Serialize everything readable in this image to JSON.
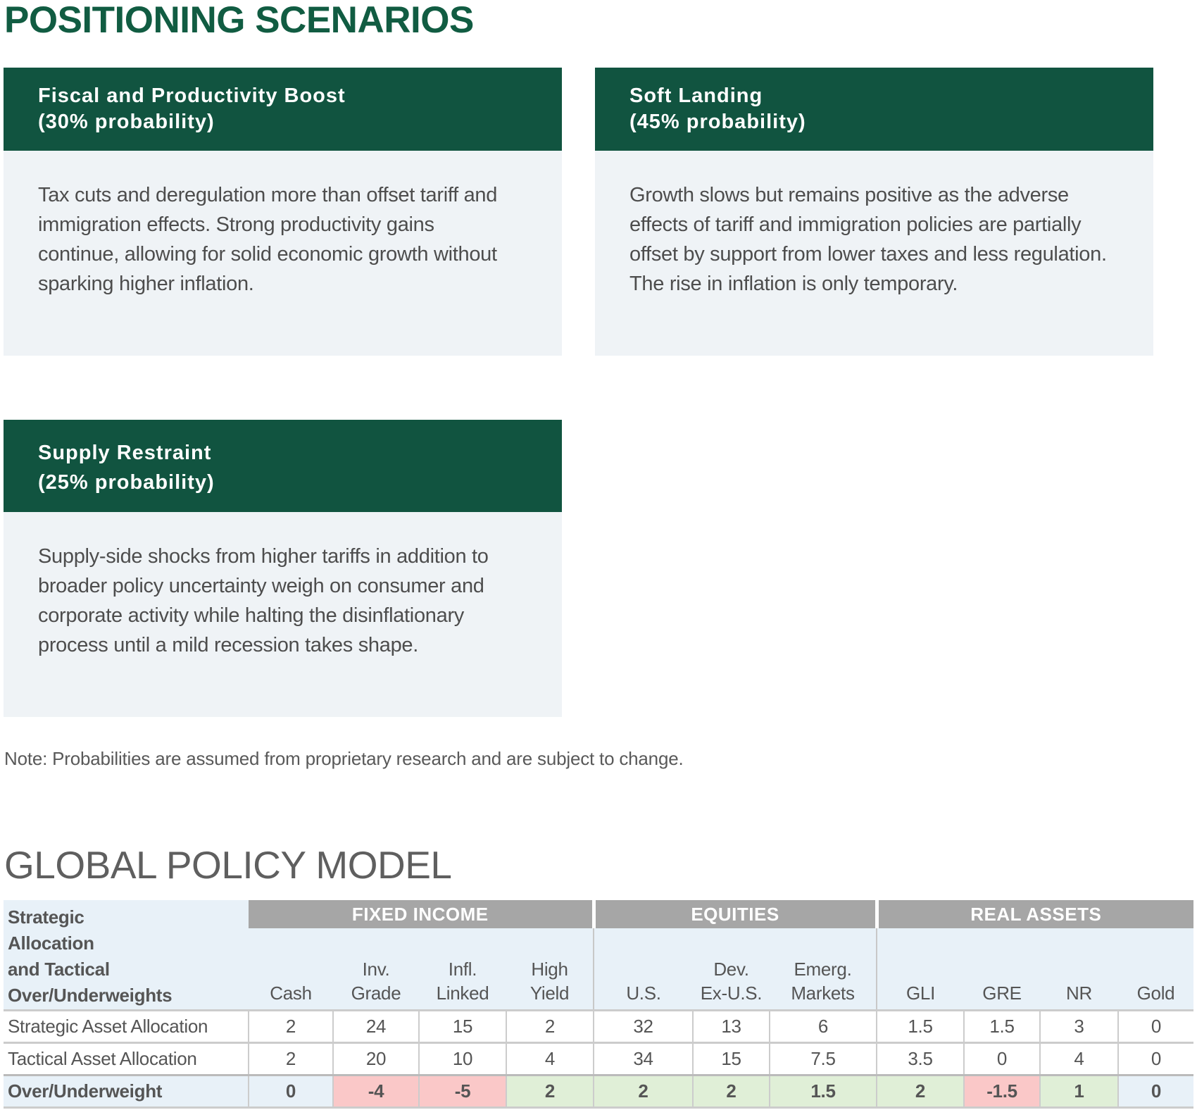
{
  "title": "POSITIONING SCENARIOS",
  "scenarios": [
    {
      "name": "Fiscal and Productivity Boost",
      "probability": "(30% probability)",
      "lines": [
        "Tax cuts and deregulation more than offset tariff and",
        "immigration effects. Strong productivity gains",
        "continue, allowing for solid economic growth without",
        "sparking higher inflation."
      ]
    },
    {
      "name": "Soft Landing",
      "probability": "(45% probability)",
      "lines": [
        "Growth slows but remains positive as the adverse",
        "effects of tariff and immigration policies are partially",
        "offset by support from lower taxes and less regulation.",
        "The rise in inflation is only temporary."
      ]
    },
    {
      "name": "Supply Restraint",
      "probability": "(25% probability)",
      "lines": [
        "Supply-side shocks from higher tariffs in addition to",
        "broader policy uncertainty weigh on consumer and",
        "corporate activity while halting the disinflationary",
        "process until a mild recession takes shape."
      ]
    }
  ],
  "note": "Note: Probabilities are assumed from proprietary research and are subject to change.",
  "model_title": "GLOBAL POLICY MODEL",
  "table": {
    "corner": [
      "Strategic",
      "Allocation",
      "and Tactical",
      "Over/Underweights"
    ],
    "groups": [
      "FIXED INCOME",
      "EQUITIES",
      "REAL ASSETS"
    ],
    "columns": [
      [
        "",
        "Cash"
      ],
      [
        "Inv.",
        "Grade"
      ],
      [
        "Infl.",
        "Linked"
      ],
      [
        "High",
        "Yield"
      ],
      [
        "",
        "U.S."
      ],
      [
        "Dev.",
        "Ex-U.S."
      ],
      [
        "Emerg.",
        "Markets"
      ],
      [
        "",
        "GLI"
      ],
      [
        "",
        "GRE"
      ],
      [
        "",
        "NR"
      ],
      [
        "",
        "Gold"
      ]
    ],
    "rows": [
      {
        "label": "Strategic Asset Allocation",
        "values": [
          "2",
          "24",
          "15",
          "2",
          "32",
          "13",
          "6",
          "1.5",
          "1.5",
          "3",
          "0"
        ]
      },
      {
        "label": "Tactical Asset Allocation",
        "values": [
          "2",
          "20",
          "10",
          "4",
          "34",
          "15",
          "7.5",
          "3.5",
          "0",
          "4",
          "0"
        ]
      }
    ],
    "overunder": {
      "label": "Over/Underweight",
      "values": [
        "0",
        "-4",
        "-5",
        "2",
        "2",
        "2",
        "1.5",
        "2",
        "-1.5",
        "1",
        "0"
      ]
    }
  },
  "colors": {
    "brand_green": "#115440",
    "negative": "#fac8c8",
    "positive": "#e0efd7",
    "neutral": "#e8f1f8"
  }
}
